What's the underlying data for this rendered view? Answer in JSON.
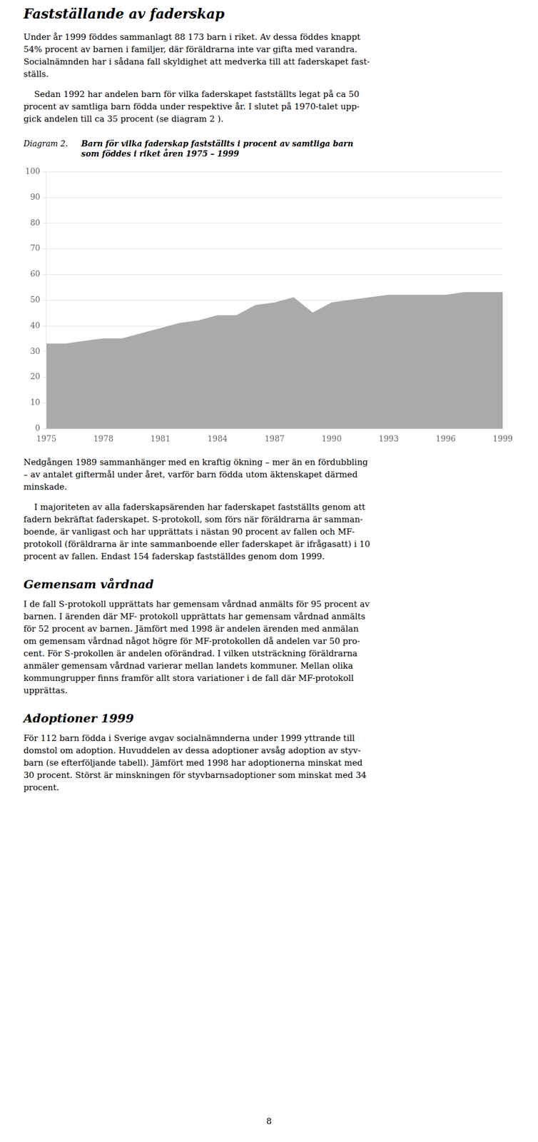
{
  "page_title": "Fastställande av faderskap",
  "text_before": [
    [
      "Under år 1999 föddes sammanlagt 88 173 barn i riket. Av dessa föddes knappt",
      "54% procent av barnen i familjer, där föräldrarna inte var gifta med varandra.",
      "Socialnämnden har i sådana fall skyldighet att medverka till att faderskapet fast-",
      "ställs."
    ],
    [
      "    Sedan 1992 har andelen barn för vilka faderskapet fastställts legat på ca 50",
      "procent av samtliga barn födda under respektive år. I slutet på 1970-talet upp-",
      "gick andelen till ca 35 procent (se diagram 2 )."
    ]
  ],
  "chart_data": {
    "type": "area",
    "label": "Diagram 2.",
    "title": [
      "Barn för vilka faderskap fastställts i procent av samtliga barn",
      "som föddes i riket åren 1975 – 1999"
    ],
    "x": [
      1975,
      1976,
      1977,
      1978,
      1979,
      1980,
      1981,
      1982,
      1983,
      1984,
      1985,
      1986,
      1987,
      1988,
      1989,
      1990,
      1991,
      1992,
      1993,
      1994,
      1995,
      1996,
      1997,
      1998,
      1999
    ],
    "values": [
      33,
      33,
      34,
      35,
      35,
      37,
      39,
      41,
      42,
      44,
      44,
      48,
      49,
      51,
      45,
      49,
      50,
      51,
      52,
      52,
      52,
      52,
      53,
      53,
      53
    ],
    "color": "#aaaaaa",
    "xlim": [
      1975,
      1999
    ],
    "xticks": [
      1975,
      1978,
      1981,
      1984,
      1987,
      1990,
      1993,
      1996,
      1999
    ],
    "ylim": [
      0,
      100
    ],
    "yticks": [
      0,
      10,
      20,
      30,
      40,
      50,
      60,
      70,
      80,
      90,
      100
    ],
    "grid": "y"
  },
  "text_after": [
    [
      "Nedgången 1989 sammanhänger med en kraftig ökning – mer än en fördubbling",
      "– av antalet giftermål under året, varför barn födda utom äktenskapet därmed",
      "minskade."
    ],
    [
      "    I majoriteten av alla faderskapsärenden har faderskapet fastställts genom att",
      "fadern bekräftat faderskapet. S-protokoll, som förs när föräldrarna är samman-",
      "boende, är vanligast och har upprättats i nästan 90 procent av fallen och MF-",
      "protokoll (föräldrarna är inte sammanboende eller faderskapet är ifrågasatt) i 10",
      "procent av fallen. Endast 154 faderskap fastställdes genom dom 1999."
    ]
  ],
  "sections": [
    {
      "title": "Gemensam vårdnad",
      "lines": [
        "I de fall S-protokoll upprättats har gemensam vårdnad anmälts för 95 procent av",
        "barnen. I ärenden där MF- protokoll upprättats har gemensam vårdnad anmälts",
        "för 52 procent av barnen. Jämfört med 1998 är andelen ärenden med anmälan",
        "om gemensam vårdnad något högre för MF-protokollen då andelen var 50 pro-",
        "cent. För S-prokollen är andelen oförändrad. I vilken utsträckning föräldrarna",
        "anmäler gemensam vårdnad varierar mellan landets kommuner. Mellan olika",
        "kommungrupper finns framför allt stora variationer i de fall där MF-protokoll",
        "upprättas."
      ]
    },
    {
      "title": "Adoptioner 1999",
      "lines": [
        "För 112 barn födda i Sverige avgav socialnämnderna under 1999 yttrande till",
        "domstol om adoption. Huvuddelen av dessa adoptioner avsåg adoption av styv-",
        "barn (se efterföljande tabell). Jämfört med 1998 har adoptionerna minskat med",
        "30 procent. Störst är minskningen för styvbarnsadoptioner som minskat med 34",
        "procent."
      ]
    }
  ],
  "page_number": 8
}
